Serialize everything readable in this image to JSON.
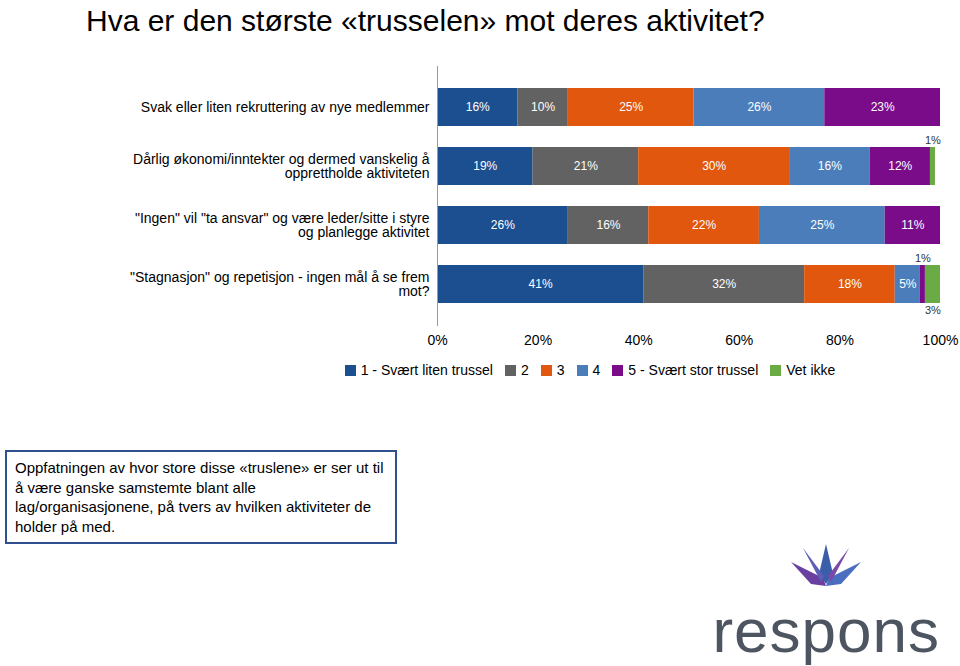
{
  "chart_data": {
    "type": "bar",
    "orientation": "horizontal",
    "stacked": true,
    "data_labels": true,
    "title": "Hva er den største «trusselen» mot deres aktivitet?",
    "annotation": "Oppfatningen av hvor store disse «truslene» er ser ut til å være ganske samstemte blant alle lag/organisasjonene, på tvers av hvilken aktiviteter de holder på med.",
    "logo": "respons",
    "legend": "bottom",
    "categories": [
      "Svak eller liten rekruttering av nye medlemmer",
      "Dårlig økonomi/inntekter og dermed vanskelig å opprettholde aktiviteten",
      "\"Ingen\" vil \"ta ansvar\" og være leder/sitte i styre og planlegge aktivitet",
      "\"Stagnasjon\" og repetisjon - ingen mål å se frem mot?"
    ],
    "series": [
      {
        "name": "1 - Svært liten trussel",
        "color": "#1b4f8f",
        "values": [
          16,
          19,
          26,
          41
        ],
        "value_labels": [
          "16%",
          "19%",
          "26%",
          "41%"
        ]
      },
      {
        "name": "2",
        "color": "#626262",
        "values": [
          10,
          21,
          16,
          32
        ],
        "value_labels": [
          "10%",
          "21%",
          "16%",
          "32%"
        ]
      },
      {
        "name": "3",
        "color": "#e0570d",
        "values": [
          25,
          30,
          22,
          18
        ],
        "value_labels": [
          "25%",
          "30%",
          "22%",
          "18%"
        ]
      },
      {
        "name": "4",
        "color": "#4a7dba",
        "values": [
          26,
          16,
          25,
          5
        ],
        "value_labels": [
          "26%",
          "16%",
          "25%",
          "5%"
        ]
      },
      {
        "name": "5 - Svært stor trussel",
        "color": "#7a0b89",
        "values": [
          23,
          12,
          11,
          1
        ],
        "value_labels": [
          "23%",
          "12%",
          "11%",
          "1%"
        ]
      },
      {
        "name": "Vet ikke",
        "color": "#6aab45",
        "values": [
          null,
          1,
          null,
          3
        ],
        "value_labels": [
          null,
          "1%",
          null,
          "3%"
        ]
      }
    ],
    "xlim": [
      0,
      100
    ],
    "xticks": [
      {
        "value": 0,
        "label": "0%"
      },
      {
        "value": 20,
        "label": "20%"
      },
      {
        "value": 40,
        "label": "40%"
      },
      {
        "value": 60,
        "label": "60%"
      },
      {
        "value": 80,
        "label": "80%"
      },
      {
        "value": 100,
        "label": "100%"
      }
    ],
    "grid": false
  }
}
